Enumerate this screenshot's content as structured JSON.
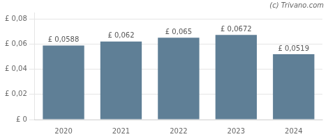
{
  "chart_data": {
    "type": "bar",
    "categories": [
      "2020",
      "2021",
      "2022",
      "2023",
      "2024"
    ],
    "values": [
      0.0588,
      0.062,
      0.065,
      0.0672,
      0.0519
    ],
    "value_labels": [
      "£ 0,0588",
      "£ 0,062",
      "£ 0,065",
      "£ 0,0672",
      "£ 0,0519"
    ],
    "data_labels": true,
    "color": "#5f7f96",
    "ylim": [
      0,
      0.085
    ],
    "yticks": [
      {
        "value": 0,
        "label": "£ 0"
      },
      {
        "value": 0.02,
        "label": "£ 0,02"
      },
      {
        "value": 0.04,
        "label": "£ 0,04"
      },
      {
        "value": 0.06,
        "label": "£ 0,06"
      },
      {
        "value": 0.08,
        "label": "£ 0,08"
      }
    ],
    "grid": true,
    "annotation": "(c) Trivano.com"
  }
}
